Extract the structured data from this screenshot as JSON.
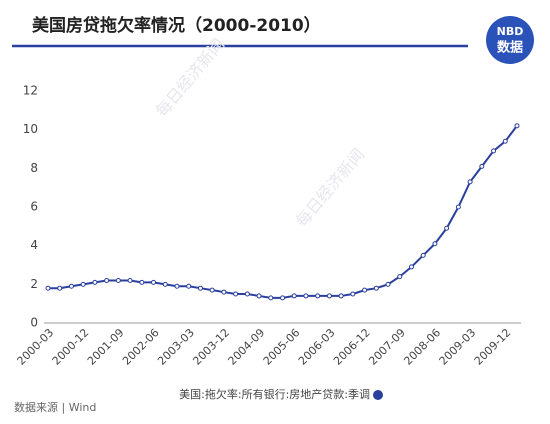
{
  "chart_data": {
    "type": "line",
    "title": "美国房贷拖欠率情况（2000-2010）",
    "logo": {
      "top": "NBD",
      "bottom": "数据"
    },
    "watermark": "每日经济新闻",
    "source": "数据来源 | Wind",
    "categories": [
      "2000-03",
      null,
      null,
      "2000-12",
      null,
      null,
      "2001-09",
      null,
      null,
      "2002-06",
      null,
      null,
      "2003-03",
      null,
      null,
      "2003-12",
      null,
      null,
      "2004-09",
      null,
      null,
      "2005-06",
      null,
      null,
      "2006-03",
      null,
      null,
      "2006-12",
      null,
      null,
      "2007-09",
      null,
      null,
      "2008-06",
      null,
      null,
      "2009-03",
      null,
      null,
      "2009-12",
      null
    ],
    "series": [
      {
        "name": "美国:拖欠率:所有银行:房地产贷款:季调",
        "color": "#2a3f9e",
        "values": [
          1.8,
          1.8,
          1.9,
          2.0,
          2.1,
          2.2,
          2.2,
          2.2,
          2.1,
          2.1,
          2.0,
          1.9,
          1.9,
          1.8,
          1.7,
          1.6,
          1.5,
          1.5,
          1.4,
          1.3,
          1.3,
          1.4,
          1.4,
          1.4,
          1.4,
          1.4,
          1.5,
          1.7,
          1.8,
          2.0,
          2.4,
          2.9,
          3.5,
          4.1,
          4.9,
          6.0,
          7.3,
          8.1,
          8.9,
          9.4,
          10.2
        ]
      }
    ],
    "ylim": [
      0,
      12
    ],
    "yticks": [
      0,
      2,
      4,
      6,
      8,
      10,
      12
    ],
    "grid": false,
    "legend": "bottom"
  }
}
